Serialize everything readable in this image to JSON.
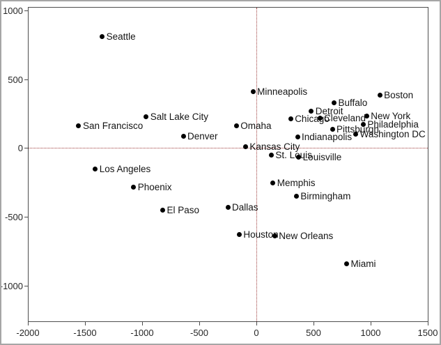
{
  "chart_data": {
    "type": "scatter",
    "title": "",
    "xlabel": "",
    "ylabel": "",
    "xlim": [
      -2000,
      1500
    ],
    "ylim": [
      -1260,
      1025
    ],
    "x_ticks": [
      "-2000",
      "-1500",
      "-1000",
      "-500",
      "0",
      "500",
      "1000",
      "1500"
    ],
    "x_tick_values": [
      -2000,
      -1500,
      -1000,
      -500,
      0,
      500,
      1000,
      1500
    ],
    "y_ticks": [
      "1000",
      "500",
      "0",
      "-500",
      "-1000"
    ],
    "y_tick_values": [
      1000,
      500,
      0,
      -500,
      -1000
    ],
    "grid": false,
    "legend": false,
    "reference_lines": {
      "v": 0,
      "h": 0,
      "style": "dotted",
      "color": "#9d3b3b"
    },
    "marker": {
      "shape": "circle",
      "color": "#000000",
      "size": 7
    },
    "points": [
      {
        "name": "Seattle",
        "x": -1350,
        "y": 810
      },
      {
        "name": "San Francisco",
        "x": -1555,
        "y": 160
      },
      {
        "name": "Salt Lake City",
        "x": -965,
        "y": 225
      },
      {
        "name": "Denver",
        "x": -640,
        "y": 85
      },
      {
        "name": "Los Angeles",
        "x": -1410,
        "y": -155
      },
      {
        "name": "Phoenix",
        "x": -1075,
        "y": -285
      },
      {
        "name": "El Paso",
        "x": -820,
        "y": -450
      },
      {
        "name": "Minneapolis",
        "x": -30,
        "y": 410
      },
      {
        "name": "Omaha",
        "x": -175,
        "y": 160
      },
      {
        "name": "Kansas City",
        "x": -95,
        "y": 10
      },
      {
        "name": "Dallas",
        "x": -250,
        "y": -430
      },
      {
        "name": "Houston",
        "x": -150,
        "y": -630
      },
      {
        "name": "St. Louis",
        "x": 130,
        "y": -50
      },
      {
        "name": "Memphis",
        "x": 145,
        "y": -255
      },
      {
        "name": "New Orleans",
        "x": 160,
        "y": -640
      },
      {
        "name": "Chicago",
        "x": 300,
        "y": 210
      },
      {
        "name": "Indianapolis",
        "x": 360,
        "y": 80
      },
      {
        "name": "Louisville",
        "x": 370,
        "y": -65
      },
      {
        "name": "Birmingham",
        "x": 350,
        "y": -350
      },
      {
        "name": "Detroit",
        "x": 480,
        "y": 270
      },
      {
        "name": "Cleveland",
        "x": 555,
        "y": 215
      },
      {
        "name": "Pittsburgh",
        "x": 665,
        "y": 135
      },
      {
        "name": "Buffalo",
        "x": 680,
        "y": 330
      },
      {
        "name": "Boston",
        "x": 1080,
        "y": 385
      },
      {
        "name": "New York",
        "x": 965,
        "y": 230
      },
      {
        "name": "Philadelphia",
        "x": 935,
        "y": 170
      },
      {
        "name": "Washington DC",
        "x": 870,
        "y": 100
      },
      {
        "name": "Miami",
        "x": 790,
        "y": -840
      }
    ]
  },
  "colors": {
    "background": "#ffffff",
    "outer_border": "#a6a6a6",
    "frame": "#4d4d4d",
    "reference_line": "#9d3b3b",
    "marker": "#000000",
    "text": "#141414"
  }
}
